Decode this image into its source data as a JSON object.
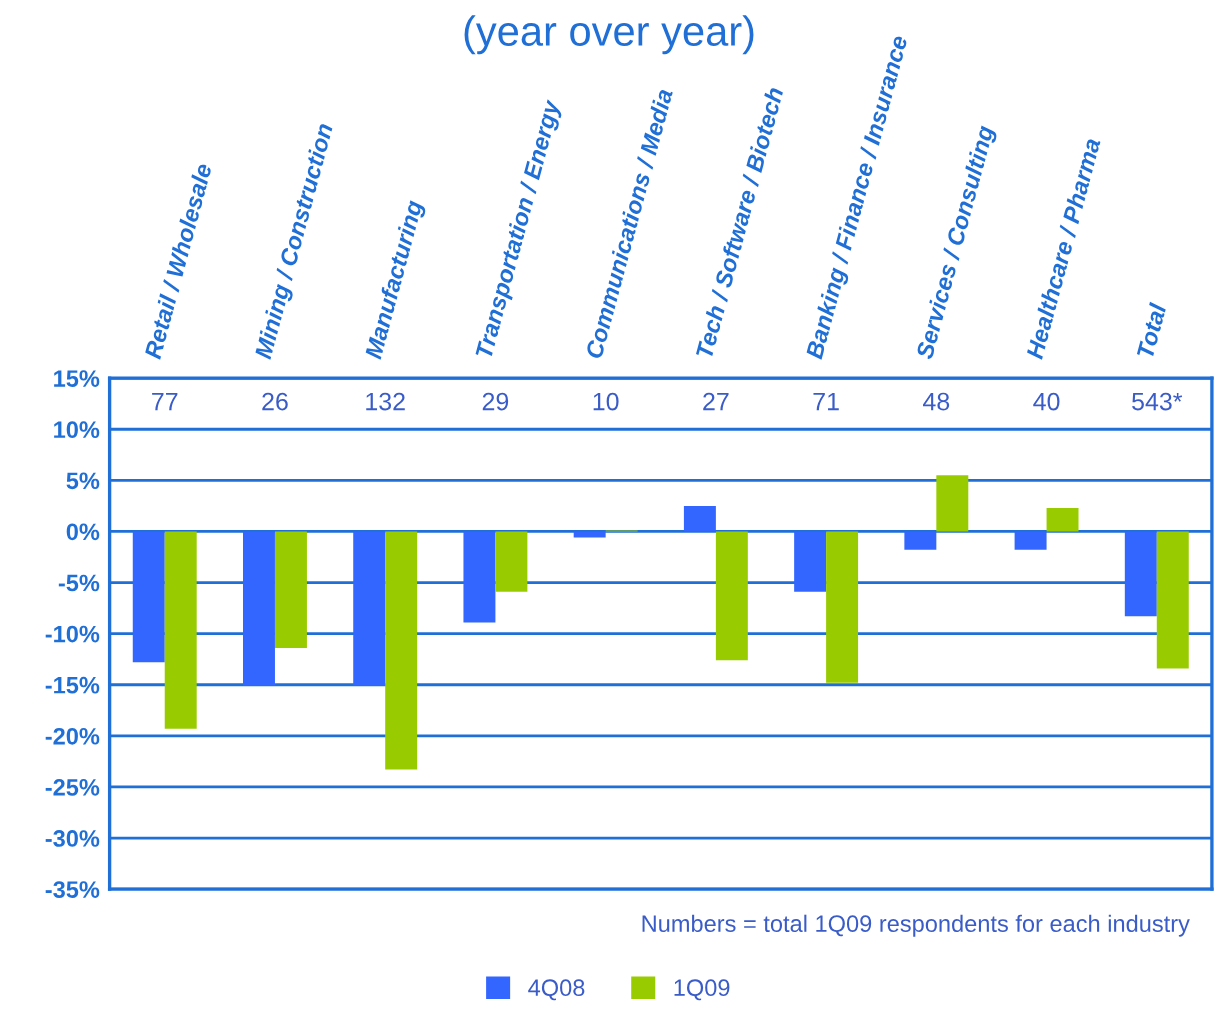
{
  "chart_data": {
    "type": "bar",
    "title": "(year over year)",
    "categories": [
      "Retail / Wholesale",
      "Mining / Construction",
      "Manufacturing",
      "Transportation / Energy",
      "Communications / Media",
      "Tech / Software / Biotech",
      "Banking / Finance / Insurance",
      "Services / Consulting",
      "Healthcare / Pharma",
      "Total"
    ],
    "series": [
      {
        "name": "4Q08",
        "color": "#3366ff",
        "values": [
          -12.8,
          -15.1,
          -15.1,
          -8.9,
          -0.6,
          2.5,
          -5.9,
          -1.8,
          -1.8,
          -8.3
        ]
      },
      {
        "name": "1Q09",
        "color": "#99cc00",
        "values": [
          -19.3,
          -11.4,
          -23.3,
          -5.9,
          0.1,
          -12.6,
          -14.8,
          5.5,
          2.3,
          -13.4
        ]
      }
    ],
    "ylim": [
      -35,
      15
    ],
    "yticks": [
      {
        "value": 15,
        "label": "15%"
      },
      {
        "value": 10,
        "label": "10%"
      },
      {
        "value": 5,
        "label": "5%"
      },
      {
        "value": 0,
        "label": "0%"
      },
      {
        "value": -5,
        "label": "-5%"
      },
      {
        "value": -10,
        "label": "-10%"
      },
      {
        "value": -15,
        "label": "-15%"
      },
      {
        "value": -20,
        "label": "-20%"
      },
      {
        "value": -25,
        "label": "-25%"
      },
      {
        "value": -30,
        "label": "-30%"
      },
      {
        "value": -35,
        "label": "-35%"
      }
    ],
    "grid": "y",
    "legend": "bottom",
    "annotations": [
      "77",
      "26",
      "132",
      "29",
      "10",
      "27",
      "71",
      "48",
      "40",
      "543*",
      "Numbers = total 1Q09 respondents for each industry"
    ]
  }
}
